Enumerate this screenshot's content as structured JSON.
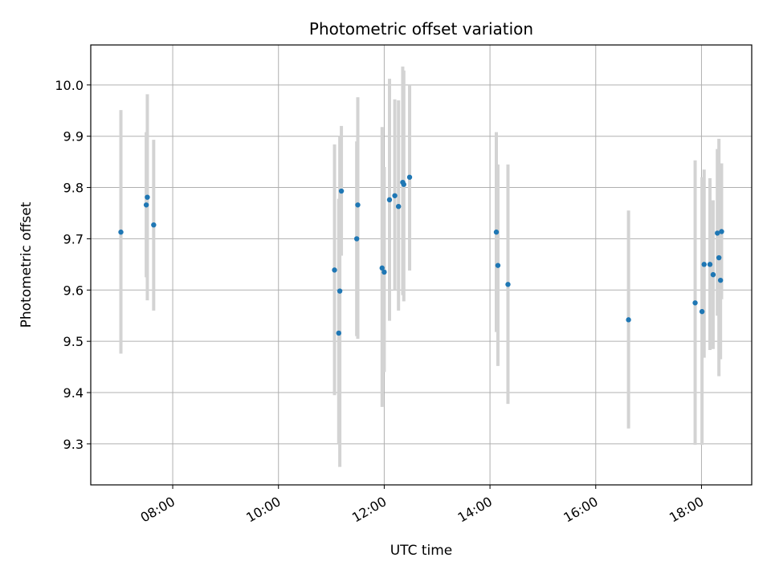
{
  "chart_data": {
    "type": "scatter",
    "title": "Photometric offset variation",
    "xlabel": "UTC time",
    "ylabel": "Photometric offset",
    "x_unit": "hours (UTC time of day)",
    "xlim": [
      6.45,
      18.95
    ],
    "ylim": [
      9.22,
      10.078
    ],
    "x_ticks": [
      {
        "value": 8,
        "label": "08:00"
      },
      {
        "value": 10,
        "label": "10:00"
      },
      {
        "value": 12,
        "label": "12:00"
      },
      {
        "value": 14,
        "label": "14:00"
      },
      {
        "value": 16,
        "label": "16:00"
      },
      {
        "value": 18,
        "label": "18:00"
      }
    ],
    "y_ticks": [
      {
        "value": 9.3,
        "label": "9.3"
      },
      {
        "value": 9.4,
        "label": "9.4"
      },
      {
        "value": 9.5,
        "label": "9.5"
      },
      {
        "value": 9.6,
        "label": "9.6"
      },
      {
        "value": 9.7,
        "label": "9.7"
      },
      {
        "value": 9.8,
        "label": "9.8"
      },
      {
        "value": 9.9,
        "label": "9.9"
      },
      {
        "value": 10.0,
        "label": "10.0"
      }
    ],
    "grid": true,
    "point_color": "#1f77b4",
    "errorbar_color": "#d3d3d3",
    "points": [
      {
        "x": 7.02,
        "y": 9.713,
        "lo": 9.476,
        "hi": 9.951
      },
      {
        "x": 7.5,
        "y": 9.766,
        "lo": 9.625,
        "hi": 9.908
      },
      {
        "x": 7.52,
        "y": 9.781,
        "lo": 9.58,
        "hi": 9.982
      },
      {
        "x": 7.64,
        "y": 9.727,
        "lo": 9.56,
        "hi": 9.893
      },
      {
        "x": 11.06,
        "y": 9.639,
        "lo": 9.395,
        "hi": 9.884
      },
      {
        "x": 11.14,
        "y": 9.516,
        "lo": 9.3,
        "hi": 9.778
      },
      {
        "x": 11.16,
        "y": 9.598,
        "lo": 9.255,
        "hi": 9.9
      },
      {
        "x": 11.19,
        "y": 9.793,
        "lo": 9.667,
        "hi": 9.92
      },
      {
        "x": 11.48,
        "y": 9.7,
        "lo": 9.51,
        "hi": 9.89
      },
      {
        "x": 11.5,
        "y": 9.766,
        "lo": 9.505,
        "hi": 9.976
      },
      {
        "x": 11.96,
        "y": 9.643,
        "lo": 9.372,
        "hi": 9.918
      },
      {
        "x": 12.0,
        "y": 9.635,
        "lo": 9.44,
        "hi": 9.84
      },
      {
        "x": 12.1,
        "y": 9.776,
        "lo": 9.54,
        "hi": 10.012
      },
      {
        "x": 12.2,
        "y": 9.784,
        "lo": 9.6,
        "hi": 9.972
      },
      {
        "x": 12.27,
        "y": 9.763,
        "lo": 9.56,
        "hi": 9.97
      },
      {
        "x": 12.35,
        "y": 9.81,
        "lo": 9.59,
        "hi": 10.036
      },
      {
        "x": 12.37,
        "y": 9.806,
        "lo": 9.578,
        "hi": 10.028
      },
      {
        "x": 12.48,
        "y": 9.82,
        "lo": 9.638,
        "hi": 10.0
      },
      {
        "x": 14.12,
        "y": 9.713,
        "lo": 9.518,
        "hi": 9.908
      },
      {
        "x": 14.15,
        "y": 9.648,
        "lo": 9.452,
        "hi": 9.845
      },
      {
        "x": 14.34,
        "y": 9.611,
        "lo": 9.378,
        "hi": 9.845
      },
      {
        "x": 16.62,
        "y": 9.542,
        "lo": 9.33,
        "hi": 9.755
      },
      {
        "x": 17.88,
        "y": 9.575,
        "lo": 9.298,
        "hi": 9.853
      },
      {
        "x": 18.01,
        "y": 9.558,
        "lo": 9.298,
        "hi": 9.82
      },
      {
        "x": 18.05,
        "y": 9.65,
        "lo": 9.468,
        "hi": 9.835
      },
      {
        "x": 18.16,
        "y": 9.65,
        "lo": 9.483,
        "hi": 9.818
      },
      {
        "x": 18.22,
        "y": 9.63,
        "lo": 9.485,
        "hi": 9.775
      },
      {
        "x": 18.3,
        "y": 9.711,
        "lo": 9.55,
        "hi": 9.875
      },
      {
        "x": 18.33,
        "y": 9.663,
        "lo": 9.432,
        "hi": 9.895
      },
      {
        "x": 18.36,
        "y": 9.619,
        "lo": 9.465,
        "hi": 9.775
      },
      {
        "x": 18.38,
        "y": 9.714,
        "lo": 9.582,
        "hi": 9.847
      }
    ]
  }
}
